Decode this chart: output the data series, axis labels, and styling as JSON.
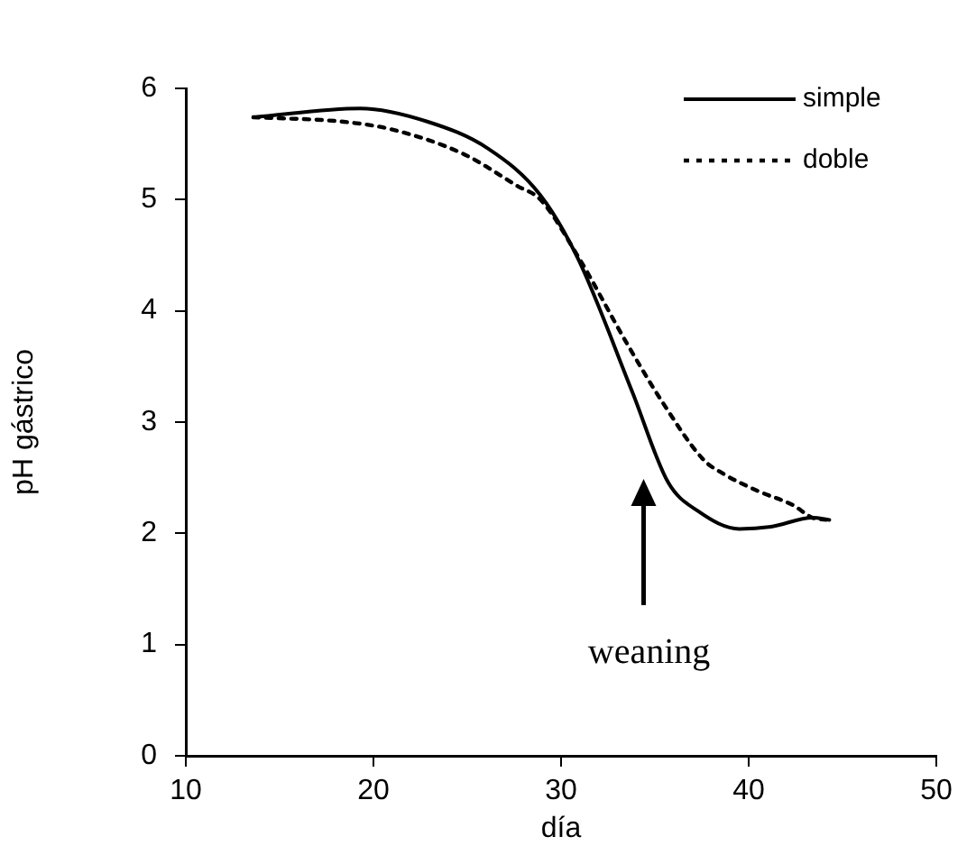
{
  "chart_data": {
    "type": "line",
    "xlabel": "día",
    "ylabel": "pH gástrico",
    "xlim": [
      10,
      50
    ],
    "xticks": [
      10,
      20,
      30,
      40,
      50
    ],
    "ylim": [
      0,
      6
    ],
    "yticks": [
      0,
      1,
      2,
      3,
      4,
      5,
      6
    ],
    "grid": false,
    "legend": "top right",
    "marker": "none",
    "series": [
      {
        "name": "simple",
        "color": "#000000",
        "line_style": "solid",
        "x": [
          13.6,
          19.3,
          22.9,
          26.1,
          28.9,
          30.9,
          33.8,
          35.7,
          37.3,
          39.5,
          41.2,
          43.4,
          44.3
        ],
        "values": [
          5.74,
          5.82,
          5.7,
          5.46,
          5.04,
          4.47,
          3.27,
          2.46,
          2.2,
          2.04,
          2.06,
          2.14,
          2.12
        ]
      },
      {
        "name": "doble",
        "color": "#000000",
        "line_style": "dotted",
        "x": [
          13.6,
          18.4,
          21,
          24.8,
          27.7,
          28.9,
          30.9,
          33.5,
          35.4,
          37.6,
          38.6,
          40.5,
          42.4,
          43.4,
          44.3
        ],
        "values": [
          5.74,
          5.7,
          5.63,
          5.41,
          5.12,
          5,
          4.49,
          3.71,
          3.18,
          2.66,
          2.54,
          2.38,
          2.25,
          2.14,
          2.12
        ]
      }
    ],
    "annotations": [
      "weaning"
    ]
  }
}
